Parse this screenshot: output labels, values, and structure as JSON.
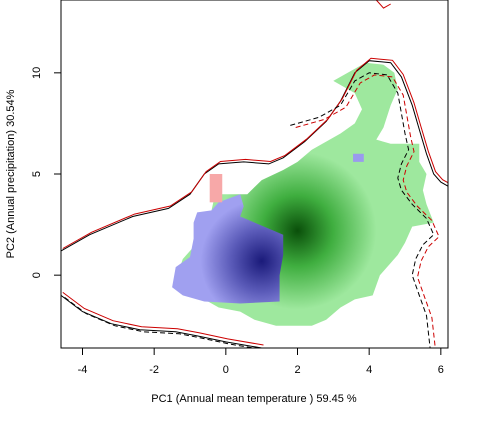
{
  "chart_data": {
    "type": "density-overlap",
    "xlabel": "PC1 (Annual mean temperature ) 59.45 %",
    "ylabel": "PC2 (Annual precipitation) 30.54%",
    "xlim": [
      -4.6,
      6.2
    ],
    "ylim": [
      -3.6,
      13.6
    ],
    "x_ticks": [
      -4,
      -2,
      0,
      2,
      4,
      6
    ],
    "y_ticks": [
      0,
      5,
      10
    ],
    "colors": {
      "species1_density": "#1a1a7a",
      "species1_range": "#9a9aee",
      "species2_density": "#0a4f0a",
      "species2_range": "#9ee89e",
      "species2_only_patch": "#f7a8a8",
      "env_contour_a": "#cc0000",
      "env_contour_b": "#000000"
    },
    "density_peaks": {
      "species1": {
        "x": 1.0,
        "y": 0.7
      },
      "species2": {
        "x": 2.0,
        "y": 2.2
      }
    }
  }
}
